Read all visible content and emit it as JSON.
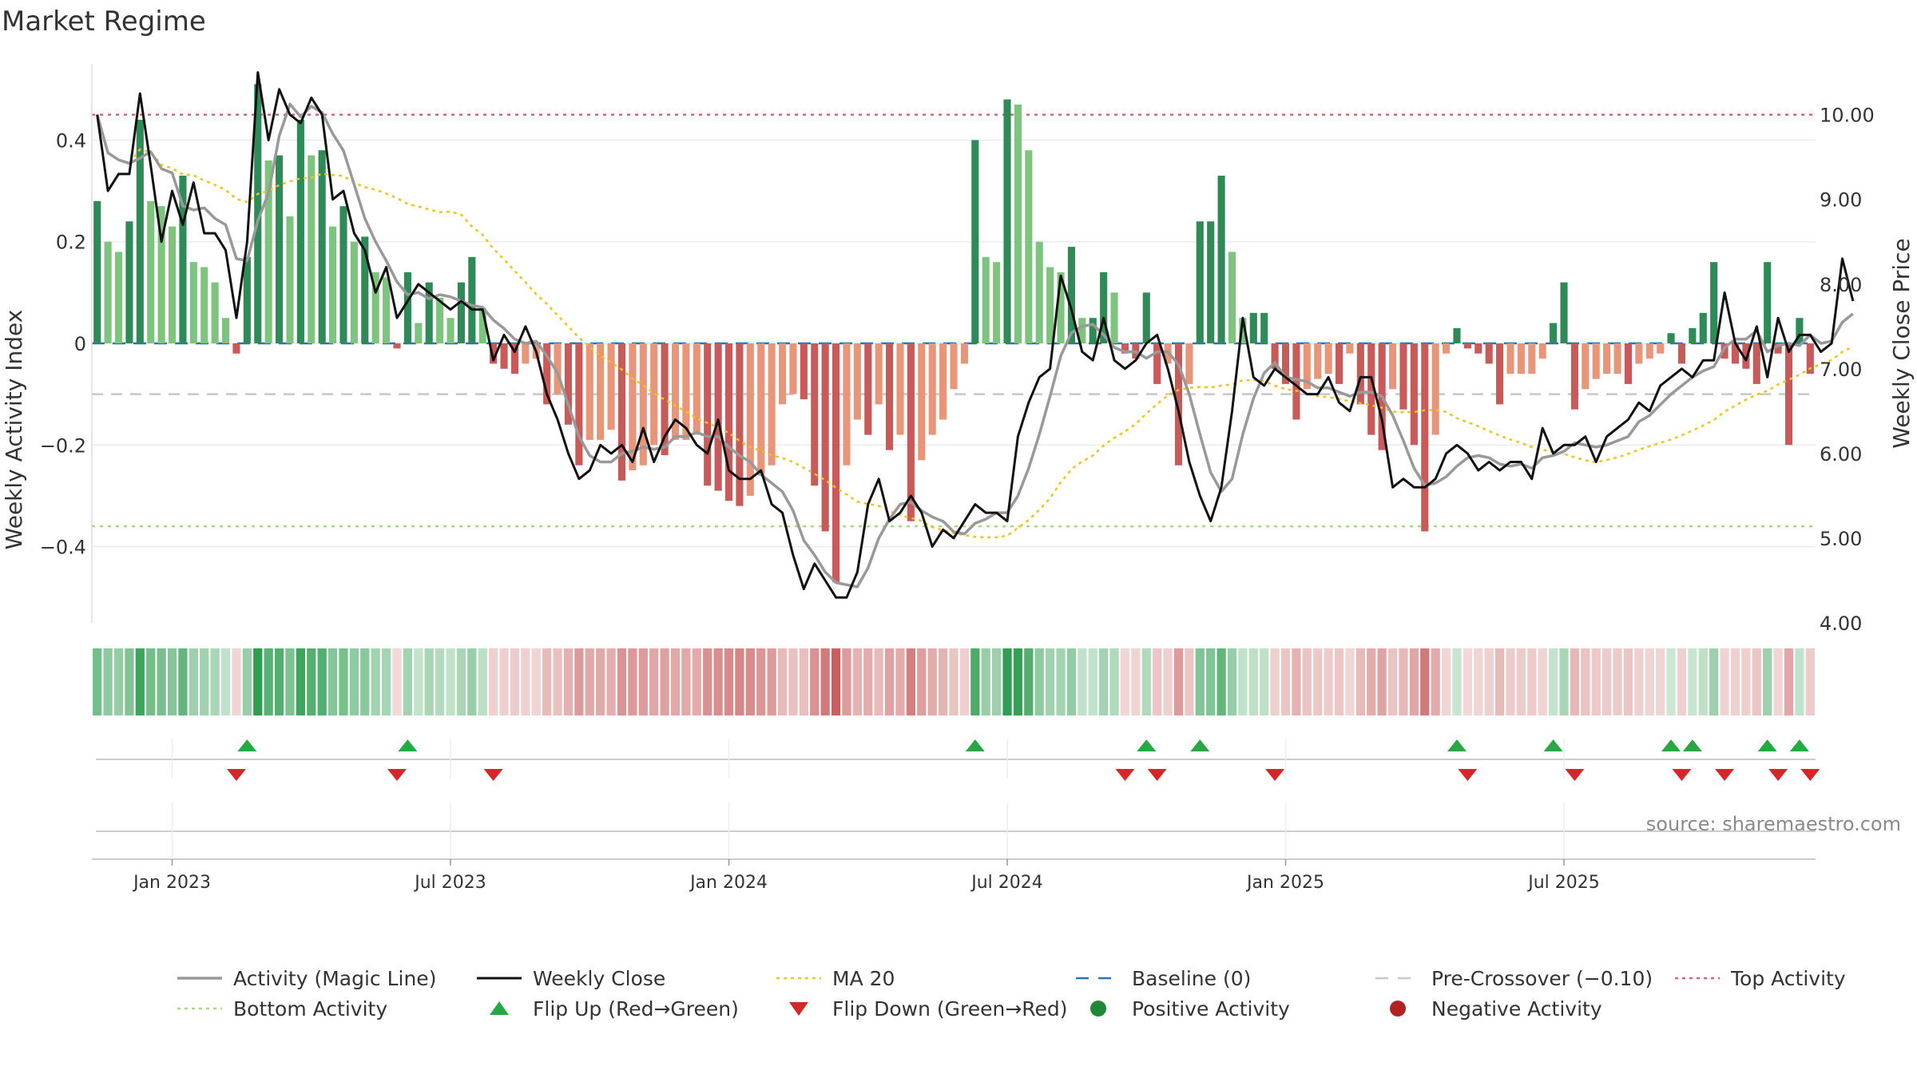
{
  "chart_data": {
    "type": "bar",
    "title": "Market Regime",
    "ylabel": "Weekly Activity Index",
    "y2label": "Weekly Close Price",
    "ylim": [
      -0.55,
      0.55
    ],
    "y2lim": [
      4.0,
      10.6
    ],
    "yticks": [
      {
        "value": 0.4,
        "label": "0.4"
      },
      {
        "value": 0.2,
        "label": "0.2"
      },
      {
        "value": 0,
        "label": "0"
      },
      {
        "value": -0.2,
        "label": "−0.2"
      },
      {
        "value": -0.4,
        "label": "−0.4"
      }
    ],
    "y2ticks": [
      {
        "value": 10,
        "label": "10.00"
      },
      {
        "value": 9,
        "label": "9.00"
      },
      {
        "value": 8,
        "label": "8.00"
      },
      {
        "value": 7,
        "label": "7.00"
      },
      {
        "value": 6,
        "label": "6.00"
      },
      {
        "value": 5,
        "label": "5.00"
      },
      {
        "value": 4,
        "label": "4.00"
      }
    ],
    "xticks": [
      {
        "week": 7.5,
        "label": "Jan 2023"
      },
      {
        "week": 33.5,
        "label": "Jul 2023"
      },
      {
        "week": 59.5,
        "label": "Jan 2024"
      },
      {
        "week": 85.5,
        "label": "Jul 2024"
      },
      {
        "week": 111.5,
        "label": "Jan 2025"
      },
      {
        "week": 137.5,
        "label": "Jul 2025"
      }
    ],
    "reference_lines": {
      "top_activity": 0.45,
      "bottom_activity": -0.36,
      "pre_crossover": -0.1,
      "baseline": 0
    },
    "activity": [
      0.28,
      0.2,
      0.18,
      0.24,
      0.44,
      0.28,
      0.27,
      0.23,
      0.33,
      0.16,
      0.15,
      0.12,
      0.05,
      -0.02,
      0.17,
      0.51,
      0.36,
      0.37,
      0.25,
      0.44,
      0.37,
      0.38,
      0.23,
      0.27,
      0.2,
      0.21,
      0.14,
      0.13,
      -0.01,
      0.14,
      0.04,
      0.12,
      0.09,
      0.05,
      0.12,
      0.17,
      0.07,
      -0.04,
      -0.05,
      -0.06,
      -0.04,
      -0.03,
      -0.12,
      -0.1,
      -0.16,
      -0.24,
      -0.19,
      -0.19,
      -0.17,
      -0.27,
      -0.25,
      -0.24,
      -0.2,
      -0.22,
      -0.19,
      -0.19,
      -0.18,
      -0.28,
      -0.29,
      -0.31,
      -0.32,
      -0.3,
      -0.26,
      -0.24,
      -0.12,
      -0.1,
      -0.11,
      -0.28,
      -0.37,
      -0.47,
      -0.24,
      -0.15,
      -0.18,
      -0.12,
      -0.21,
      -0.18,
      -0.35,
      -0.23,
      -0.18,
      -0.15,
      -0.09,
      -0.04,
      0.4,
      0.17,
      0.16,
      0.48,
      0.47,
      0.38,
      0.2,
      0.15,
      0.14,
      0.19,
      0.05,
      0.05,
      0.14,
      0.1,
      -0.02,
      -0.03,
      0.1,
      -0.08,
      -0.04,
      -0.24,
      -0.08,
      0.24,
      0.24,
      0.33,
      0.18,
      0.05,
      0.06,
      0.06,
      -0.05,
      -0.08,
      -0.15,
      -0.09,
      -0.07,
      -0.06,
      -0.08,
      -0.02,
      -0.12,
      -0.18,
      -0.21,
      -0.09,
      -0.13,
      -0.2,
      -0.37,
      -0.18,
      -0.02,
      0.03,
      -0.01,
      -0.02,
      -0.04,
      -0.12,
      -0.06,
      -0.06,
      -0.06,
      -0.03,
      0.04,
      0.12,
      -0.13,
      -0.09,
      -0.07,
      -0.06,
      -0.06,
      -0.08,
      -0.04,
      -0.03,
      -0.02,
      0.02,
      -0.04,
      0.03,
      0.06,
      0.16,
      -0.03,
      -0.04,
      -0.05,
      -0.08,
      0.16,
      -0.02,
      -0.2,
      0.05,
      -0.06
    ],
    "weekly_close": [
      10.0,
      9.1,
      9.3,
      9.3,
      10.25,
      9.4,
      8.5,
      9.1,
      8.7,
      9.2,
      8.6,
      8.6,
      8.4,
      7.6,
      8.5,
      10.5,
      9.7,
      10.3,
      10.0,
      9.9,
      10.2,
      10.0,
      9.0,
      9.1,
      8.6,
      8.4,
      7.9,
      8.2,
      7.6,
      7.8,
      8.0,
      7.9,
      7.8,
      7.7,
      7.8,
      7.7,
      7.7,
      7.1,
      7.4,
      7.2,
      7.5,
      7.2,
      6.7,
      6.4,
      6.0,
      5.7,
      5.8,
      6.1,
      6.0,
      6.1,
      5.9,
      6.3,
      5.9,
      6.2,
      6.4,
      6.3,
      6.1,
      6.0,
      6.4,
      5.8,
      5.7,
      5.7,
      5.8,
      5.4,
      5.3,
      4.8,
      4.4,
      4.7,
      4.5,
      4.3,
      4.3,
      4.6,
      5.4,
      5.7,
      5.2,
      5.3,
      5.5,
      5.3,
      4.9,
      5.1,
      5.0,
      5.2,
      5.4,
      5.3,
      5.3,
      5.2,
      6.2,
      6.6,
      6.9,
      7.0,
      8.1,
      7.7,
      7.2,
      7.1,
      7.6,
      7.1,
      7.0,
      7.1,
      7.3,
      7.4,
      7.0,
      6.5,
      5.9,
      5.5,
      5.2,
      5.6,
      6.5,
      7.6,
      6.9,
      6.8,
      7.0,
      6.9,
      6.8,
      6.7,
      6.7,
      6.9,
      6.6,
      6.5,
      6.9,
      6.9,
      6.4,
      5.6,
      5.7,
      5.6,
      5.6,
      5.7,
      6.0,
      6.1,
      6.0,
      5.8,
      5.9,
      5.8,
      5.9,
      5.9,
      5.7,
      6.3,
      6.0,
      6.1,
      6.1,
      6.2,
      5.9,
      6.2,
      6.3,
      6.4,
      6.6,
      6.5,
      6.8,
      6.9,
      7.0,
      6.9,
      7.1,
      7.1,
      7.9,
      7.3,
      7.1,
      7.5,
      6.9,
      7.6,
      7.2,
      7.4,
      7.4,
      7.2,
      7.3,
      8.3,
      7.8
    ]
  },
  "legend": [
    {
      "label": "Activity (Magic Line)",
      "marker": "line-gray",
      "color": "#999999"
    },
    {
      "label": "Weekly Close",
      "marker": "line-black",
      "color": "#111111"
    },
    {
      "label": "MA 20",
      "marker": "line-dotted-gold",
      "color": "#f0c419"
    },
    {
      "label": "Baseline (0)",
      "marker": "line-dashed-blue",
      "color": "#1f77b4"
    },
    {
      "label": "Pre-Crossover (−0.10)",
      "marker": "line-dashed-lightgray",
      "color": "#c8c8c8"
    },
    {
      "label": "Top Activity",
      "marker": "line-dotted-red",
      "color": "#e06070"
    },
    {
      "label": "Bottom Activity",
      "marker": "line-dotted-lightgreen",
      "color": "#a8d880"
    },
    {
      "label": "Flip Up (Red→Green)",
      "marker": "triangle-up-green",
      "color": "#28a745"
    },
    {
      "label": "Flip Down (Green→Red)",
      "marker": "triangle-down-red",
      "color": "#d62728"
    },
    {
      "label": "Positive Activity",
      "marker": "circle-green",
      "color": "#218838"
    },
    {
      "label": "Negative Activity",
      "marker": "circle-red",
      "color": "#b22222"
    }
  ],
  "source": "source: sharemaestro.com",
  "colors": {
    "pos_strong": "#2e8b57",
    "pos_light": "#7ec47e",
    "neg_strong": "#c85a5a",
    "neg_light": "#e8957a"
  }
}
